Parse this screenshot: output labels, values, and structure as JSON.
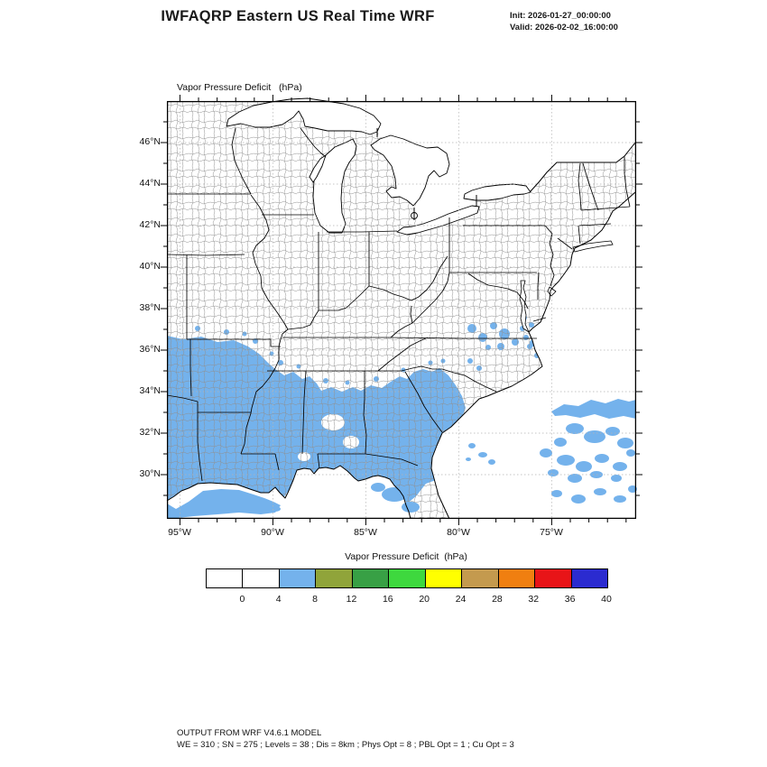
{
  "header": {
    "title": "IWFAQRP Eastern US Real Time WRF",
    "init_label": "Init: 2026-01-27_00:00:00",
    "valid_label": "Valid: 2026-02-02_16:00:00"
  },
  "map": {
    "field_label": "Vapor Pressure Deficit   (hPa)",
    "y_ticks": [
      "46°N",
      "44°N",
      "42°N",
      "40°N",
      "38°N",
      "36°N",
      "34°N",
      "32°N",
      "30°N"
    ],
    "x_ticks": [
      "95°W",
      "90°W",
      "85°W",
      "80°W",
      "75°W"
    ]
  },
  "colorbar": {
    "title": "Vapor Pressure Deficit  (hPa)",
    "tick_labels": [
      "0",
      "4",
      "8",
      "12",
      "16",
      "20",
      "24",
      "28",
      "32",
      "36",
      "40"
    ],
    "colors": [
      "#FFFFFF",
      "#FFFFFF",
      "#74B2EC",
      "#90A43A",
      "#38A045",
      "#3ED83E",
      "#FFFF00",
      "#C49A4E",
      "#F07F10",
      "#E81418",
      "#2B2BD0"
    ]
  },
  "footer": {
    "line1": "OUTPUT FROM WRF V4.6.1 MODEL",
    "line2": "WE = 310 ; SN = 275 ; Levels = 38 ; Dis = 8km ; Phys Opt = 8 ; PBL Opt = 1 ; Cu Opt = 3"
  },
  "chart_data": {
    "type": "heatmap",
    "title": "Vapor Pressure Deficit (hPa)",
    "region": "Eastern US WRF domain with county outlines",
    "x_axis": {
      "tick_labels": [
        "95°W",
        "90°W",
        "85°W",
        "80°W",
        "75°W"
      ],
      "range_lon_west": [
        95.7,
        70.5
      ]
    },
    "y_axis": {
      "tick_labels": [
        "46°N",
        "44°N",
        "42°N",
        "40°N",
        "38°N",
        "36°N",
        "34°N",
        "32°N",
        "30°N"
      ],
      "range_lat_north": [
        28.0,
        48.0
      ]
    },
    "contour_levels_hPa": [
      0,
      4,
      8,
      12,
      16,
      20,
      24,
      28,
      32,
      36,
      40
    ],
    "palette": [
      "#FFFFFF",
      "#FFFFFF",
      "#74B2EC",
      "#90A43A",
      "#38A045",
      "#3ED83E",
      "#FFFF00",
      "#C49A4E",
      "#F07F10",
      "#E81418",
      "#2B2BD0"
    ],
    "shading_color": "#74B2EC",
    "shaded_value_range_hPa": [
      4,
      8
    ],
    "shaded_regions": [
      "Broad 4-8 hPa area over the Gulf Coast states: east Texas, Louisiana, southern Arkansas, Mississippi, Alabama, Georgia, South Carolina and north Florida, up to about 36°N",
      "Scattered 4-8 hPa patches over southside Virginia, northeast North Carolina and the Chesapeake Bay area (~36-37.5°N)",
      "Scattered 4-8 hPa patches over the Atlantic between about 29-34°N east of 76°W",
      "All other land and water below 4 hPa (white)"
    ],
    "init_time": "2026-01-27_00:00:00",
    "valid_time": "2026-02-02_16:00:00"
  }
}
